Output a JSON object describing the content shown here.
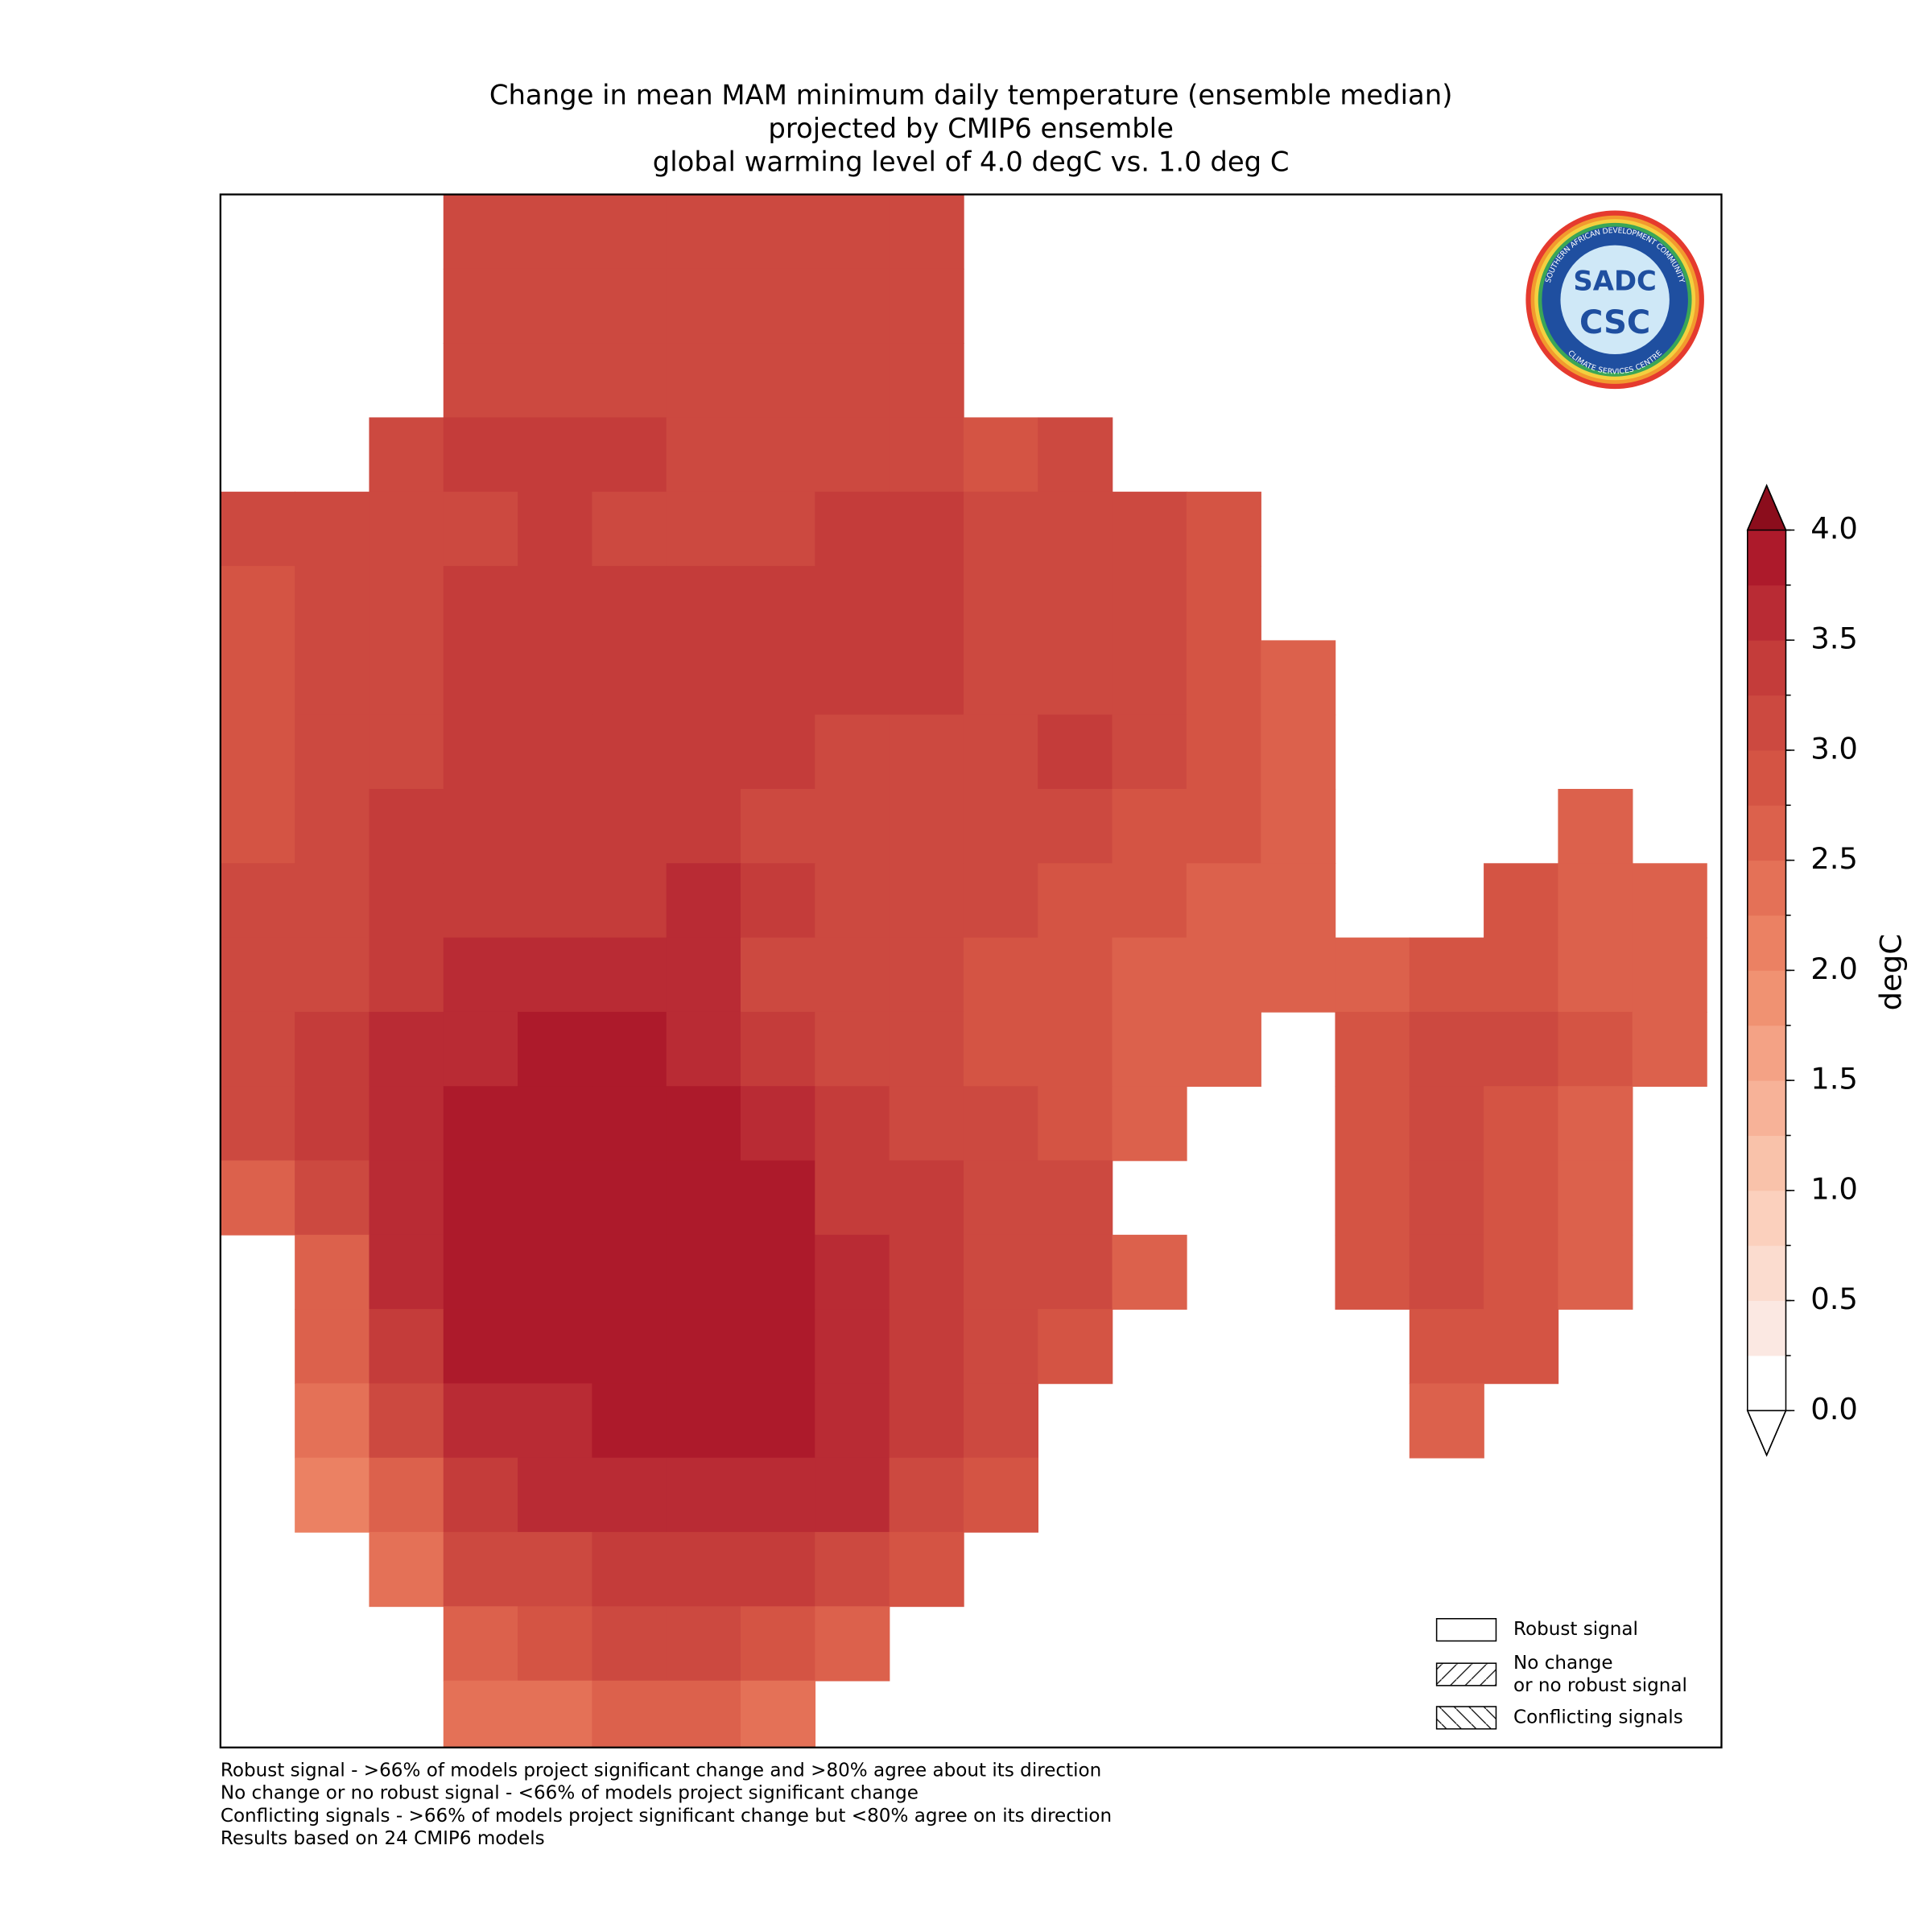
{
  "chart_data": {
    "type": "map",
    "title": [
      "Change in mean MAM minimum daily temperature (ensemble median)",
      "projected by CMIP6 ensemble",
      "global warming level of 4.0 degC vs. 1.0 deg C"
    ],
    "grid": [
      [
        null,
        null,
        null,
        3.2,
        3.2,
        3.2,
        3.2,
        3.2,
        3.2,
        3.2,
        null,
        null,
        null,
        null,
        null,
        null,
        null,
        null,
        null,
        null
      ],
      [
        null,
        null,
        null,
        3.2,
        3.2,
        3.2,
        3.2,
        3.2,
        3.2,
        3.2,
        null,
        null,
        null,
        null,
        null,
        null,
        null,
        null,
        null,
        null
      ],
      [
        null,
        null,
        null,
        3.2,
        3.2,
        3.2,
        3.2,
        3.2,
        3.2,
        3.2,
        null,
        null,
        null,
        null,
        null,
        null,
        null,
        null,
        null,
        null
      ],
      [
        null,
        null,
        3.2,
        3.4,
        3.4,
        3.3,
        3.2,
        3.2,
        3.2,
        3.2,
        2.9,
        3.0,
        null,
        null,
        null,
        null,
        null,
        null,
        null,
        null
      ],
      [
        3.0,
        3.2,
        3.2,
        3.2,
        3.3,
        3.2,
        3.2,
        3.2,
        3.3,
        3.3,
        3.2,
        3.2,
        3.0,
        2.9,
        null,
        null,
        null,
        null,
        null,
        null
      ],
      [
        2.8,
        3.1,
        3.2,
        3.4,
        3.4,
        3.4,
        3.4,
        3.4,
        3.4,
        3.3,
        3.2,
        3.2,
        3.0,
        2.8,
        null,
        null,
        null,
        null,
        null,
        null
      ],
      [
        2.8,
        3.0,
        3.2,
        3.4,
        3.4,
        3.4,
        3.4,
        3.4,
        3.4,
        3.3,
        3.2,
        3.2,
        3.0,
        2.9,
        2.7,
        null,
        null,
        null,
        null,
        null
      ],
      [
        2.8,
        3.0,
        3.2,
        3.4,
        3.4,
        3.4,
        3.4,
        3.3,
        3.2,
        3.2,
        3.2,
        3.3,
        3.0,
        2.9,
        2.6,
        null,
        null,
        null,
        null,
        null
      ],
      [
        2.8,
        3.1,
        3.3,
        3.4,
        3.4,
        3.4,
        3.3,
        3.2,
        3.2,
        3.2,
        3.0,
        3.1,
        2.9,
        2.8,
        2.6,
        null,
        null,
        null,
        2.7,
        null
      ],
      [
        3.0,
        3.2,
        3.3,
        3.4,
        3.4,
        3.4,
        3.5,
        3.3,
        3.2,
        3.1,
        3.0,
        2.9,
        2.8,
        2.7,
        2.6,
        null,
        null,
        2.8,
        2.7,
        2.6
      ],
      [
        3.1,
        3.2,
        3.4,
        3.5,
        3.5,
        3.5,
        3.5,
        3.2,
        3.0,
        3.0,
        2.9,
        2.8,
        2.7,
        2.6,
        2.5,
        2.7,
        2.9,
        2.9,
        2.7,
        2.5
      ],
      [
        3.2,
        3.3,
        3.5,
        3.7,
        3.8,
        3.8,
        3.6,
        3.3,
        3.1,
        3.1,
        2.9,
        2.8,
        2.7,
        2.6,
        null,
        2.8,
        3.0,
        3.0,
        2.8,
        2.5
      ],
      [
        3.1,
        3.3,
        3.7,
        3.8,
        3.8,
        3.8,
        3.8,
        3.6,
        3.3,
        3.2,
        3.0,
        2.9,
        2.6,
        null,
        null,
        2.8,
        3.0,
        2.9,
        2.7,
        null
      ],
      [
        2.6,
        3.2,
        3.6,
        3.8,
        3.8,
        3.8,
        3.8,
        3.8,
        3.4,
        3.3,
        3.1,
        3.0,
        null,
        null,
        null,
        2.8,
        3.0,
        2.9,
        2.7,
        null
      ],
      [
        null,
        2.6,
        3.5,
        3.8,
        3.8,
        3.8,
        3.8,
        3.8,
        3.6,
        3.4,
        3.2,
        3.0,
        2.6,
        null,
        null,
        2.9,
        3.0,
        2.8,
        2.6,
        null
      ],
      [
        null,
        2.5,
        3.4,
        3.8,
        3.8,
        3.8,
        3.8,
        3.8,
        3.6,
        3.4,
        3.0,
        2.8,
        null,
        null,
        null,
        null,
        2.9,
        2.8,
        null,
        null
      ],
      [
        null,
        2.3,
        3.0,
        3.6,
        3.7,
        3.8,
        3.8,
        3.8,
        3.6,
        3.4,
        3.2,
        null,
        null,
        null,
        null,
        null,
        2.6,
        null,
        null,
        null
      ],
      [
        null,
        2.2,
        2.5,
        3.3,
        3.5,
        3.7,
        3.7,
        3.6,
        3.5,
        3.2,
        2.8,
        null,
        null,
        null,
        null,
        null,
        null,
        null,
        null,
        null
      ],
      [
        null,
        null,
        2.3,
        3.0,
        3.2,
        3.3,
        3.3,
        3.3,
        3.2,
        2.8,
        null,
        null,
        null,
        null,
        null,
        null,
        null,
        null,
        null,
        null
      ],
      [
        null,
        null,
        null,
        2.6,
        2.8,
        3.0,
        3.0,
        2.9,
        2.5,
        null,
        null,
        null,
        null,
        null,
        null,
        null,
        null,
        null,
        null,
        null
      ],
      [
        null,
        null,
        null,
        2.3,
        2.4,
        2.5,
        2.5,
        2.4,
        null,
        null,
        null,
        null,
        null,
        null,
        null,
        null,
        null,
        null,
        null,
        null
      ]
    ],
    "colorbar": {
      "label": "degC",
      "lim": [
        0,
        4
      ],
      "levels": [
        0,
        0.25,
        0.5,
        0.75,
        1,
        1.25,
        1.5,
        1.75,
        2,
        2.25,
        2.5,
        2.75,
        3,
        3.25,
        3.5,
        3.75,
        4
      ],
      "colors": [
        "#ffffff",
        "#fbe8e2",
        "#fbdccf",
        "#fbd0bd",
        "#f9c2aa",
        "#f7b298",
        "#f4a285",
        "#f09272",
        "#eb8163",
        "#e47157",
        "#dc614c",
        "#d45444",
        "#cc4940",
        "#c43c3a",
        "#b92b34",
        "#ad1a2b"
      ],
      "over_color": "#8b0d1c",
      "under_color": "#ffffff",
      "ticks": [
        {
          "value": 0,
          "label": "0.0"
        },
        {
          "value": 0.5,
          "label": "0.5"
        },
        {
          "value": 1,
          "label": "1.0"
        },
        {
          "value": 1.5,
          "label": "1.5"
        },
        {
          "value": 2,
          "label": "2.0"
        },
        {
          "value": 2.5,
          "label": "2.5"
        },
        {
          "value": 3,
          "label": "3.0"
        },
        {
          "value": 3.5,
          "label": "3.5"
        },
        {
          "value": 4,
          "label": "4.0"
        }
      ]
    },
    "legend": [
      "Robust signal",
      "No change\nor no robust signal",
      "Conflicting signals"
    ],
    "footnotes": [
      "Robust signal - >66% of models project significant change and >80% agree about its direction",
      "No change or no robust signal - <66% of models project significant change",
      "Conflicting signals - >66% of models project significant change but <80% agree on its direction",
      "Results based on 24 CMIP6 models"
    ],
    "logo": {
      "top": "SOUTHERN AFRICAN DEVELOPMENT COMMUNITY",
      "bottom": "CLIMATE SERVICES CENTRE",
      "acronym": "SADC",
      "centre": "CSC"
    }
  }
}
